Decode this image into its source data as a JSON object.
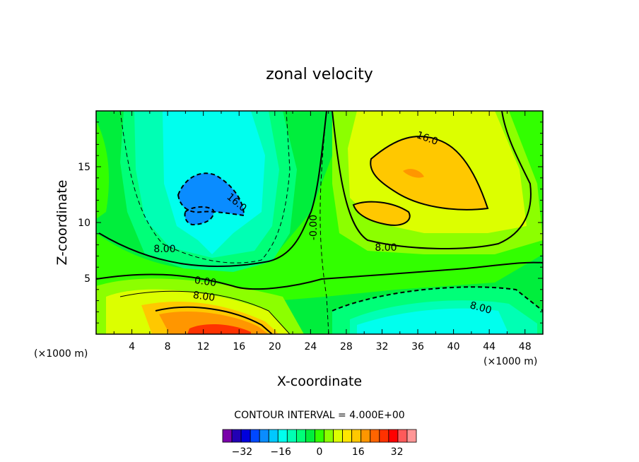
{
  "chart_data": {
    "type": "heatmap",
    "title": "zonal velocity",
    "xlabel": "X-coordinate",
    "ylabel": "Z-coordinate",
    "x_unit_left": "(×1000 m)",
    "x_unit_right": "(×1000 m)",
    "xlim": [
      0,
      50
    ],
    "ylim": [
      0,
      20
    ],
    "xticks": [
      "4",
      "8",
      "12",
      "16",
      "20",
      "24",
      "28",
      "32",
      "36",
      "40",
      "44",
      "48"
    ],
    "yticks": [
      "5",
      "10",
      "15"
    ],
    "grid": false,
    "contour_interval_text": "CONTOUR INTERVAL = 4.000E+00",
    "contour_labels": [
      "16.0",
      "16.0",
      "-0.00",
      "8.00",
      "8.00",
      "0.00",
      "8.00",
      "8.00"
    ],
    "colorbar": {
      "tick_labels": [
        "−32",
        "−16",
        "0",
        "16",
        "32"
      ],
      "colors": [
        "#7a00aa",
        "#2200b4",
        "#0000dc",
        "#0048ff",
        "#0a8cff",
        "#00c8ff",
        "#00ffee",
        "#00ffb4",
        "#00ff78",
        "#00ee3c",
        "#32ff00",
        "#8cff00",
        "#dcff00",
        "#ffe600",
        "#ffc800",
        "#ff9600",
        "#ff6400",
        "#ff3200",
        "#ff0000",
        "#ff5a5a",
        "#ff9696"
      ]
    },
    "features": [
      {
        "name": "negative core upper-left",
        "x": 11,
        "z": 12,
        "value": -18
      },
      {
        "name": "positive jet upper-right",
        "x": 35,
        "z": 13,
        "value": 20
      },
      {
        "name": "positive jet lower-left",
        "x": 14,
        "z": 0.5,
        "value": 32
      },
      {
        "name": "negative core lower-right",
        "x": 36,
        "z": 1,
        "value": -12
      }
    ]
  }
}
